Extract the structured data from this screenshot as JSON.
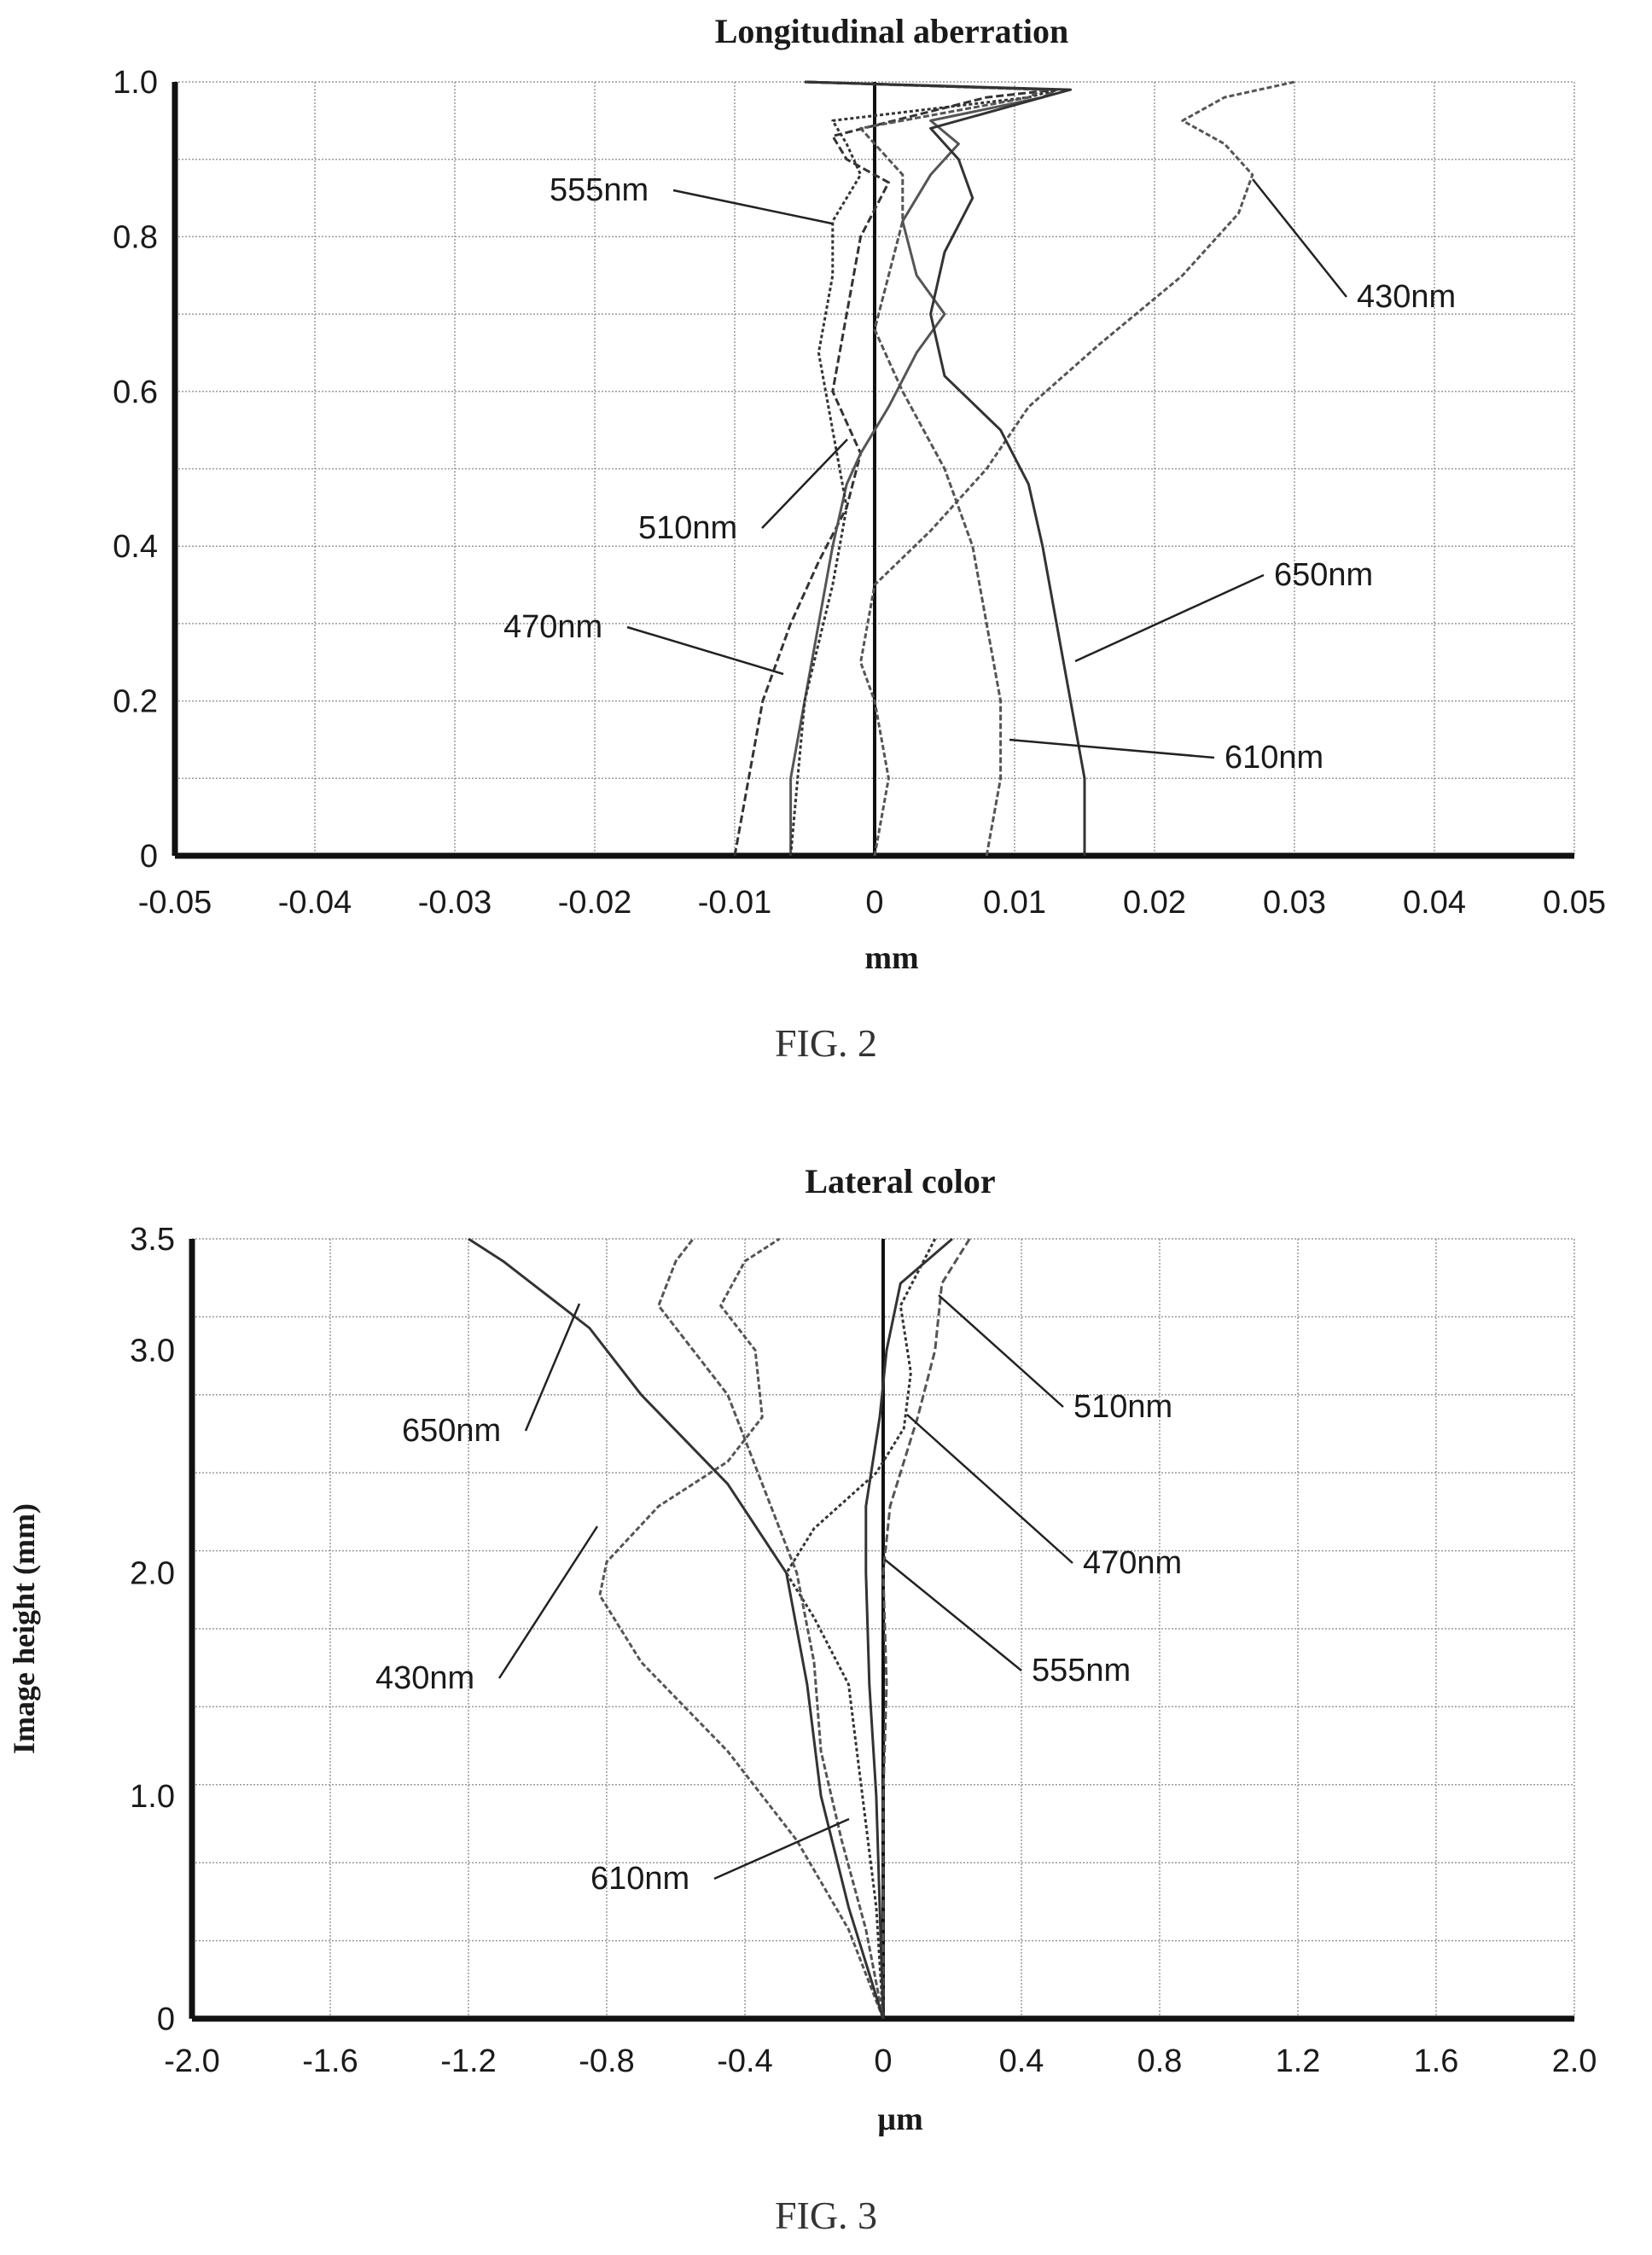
{
  "figures": [
    {
      "caption": "FIG. 2"
    },
    {
      "caption": "FIG. 3"
    }
  ],
  "chart_data": [
    {
      "type": "line",
      "title": "Longitudinal aberration",
      "xlabel": "mm",
      "ylabel": "",
      "xlim": [
        -0.05,
        0.05
      ],
      "ylim": [
        0,
        1.0
      ],
      "grid": true,
      "xticks": [
        "-0.05",
        "-0.04",
        "-0.03",
        "-0.02",
        "-0.01",
        "0",
        "0.01",
        "0.02",
        "0.03",
        "0.04",
        "0.05"
      ],
      "yticks": [
        "0",
        "0.2",
        "0.4",
        "0.6",
        "0.8",
        "1.0"
      ],
      "series": [
        {
          "name": "430nm",
          "points": [
            [
              0,
              0
            ],
            [
              0.001,
              0.1
            ],
            [
              0.0,
              0.2
            ],
            [
              -0.001,
              0.25
            ],
            [
              0.0,
              0.35
            ],
            [
              0.004,
              0.42
            ],
            [
              0.008,
              0.5
            ],
            [
              0.011,
              0.58
            ],
            [
              0.016,
              0.66
            ],
            [
              0.022,
              0.75
            ],
            [
              0.026,
              0.83
            ],
            [
              0.027,
              0.88
            ],
            [
              0.025,
              0.92
            ],
            [
              0.022,
              0.95
            ],
            [
              0.025,
              0.98
            ],
            [
              0.03,
              1.0
            ]
          ]
        },
        {
          "name": "470nm",
          "points": [
            [
              -0.01,
              0
            ],
            [
              -0.009,
              0.1
            ],
            [
              -0.008,
              0.2
            ],
            [
              -0.006,
              0.3
            ],
            [
              -0.004,
              0.38
            ],
            [
              -0.002,
              0.45
            ],
            [
              -0.001,
              0.52
            ],
            [
              -0.003,
              0.6
            ],
            [
              -0.002,
              0.7
            ],
            [
              -0.001,
              0.8
            ],
            [
              0.001,
              0.87
            ],
            [
              -0.002,
              0.9
            ],
            [
              -0.003,
              0.93
            ],
            [
              0.008,
              0.98
            ],
            [
              0.013,
              0.99
            ],
            [
              -0.005,
              1.0
            ]
          ]
        },
        {
          "name": "510nm",
          "points": [
            [
              -0.006,
              0
            ],
            [
              -0.006,
              0.1
            ],
            [
              -0.005,
              0.2
            ],
            [
              -0.004,
              0.3
            ],
            [
              -0.003,
              0.4
            ],
            [
              -0.002,
              0.48
            ],
            [
              -0.001,
              0.52
            ],
            [
              0.001,
              0.58
            ],
            [
              0.003,
              0.65
            ],
            [
              0.005,
              0.7
            ],
            [
              0.003,
              0.75
            ],
            [
              0.002,
              0.82
            ],
            [
              0.004,
              0.88
            ],
            [
              0.006,
              0.92
            ],
            [
              0.004,
              0.95
            ],
            [
              0.012,
              0.98
            ],
            [
              0.013,
              0.99
            ],
            [
              -0.005,
              1.0
            ]
          ]
        },
        {
          "name": "555nm",
          "points": [
            [
              -0.006,
              0
            ],
            [
              -0.005,
              0.2
            ],
            [
              -0.003,
              0.35
            ],
            [
              -0.002,
              0.45
            ],
            [
              -0.003,
              0.55
            ],
            [
              -0.004,
              0.65
            ],
            [
              -0.003,
              0.75
            ],
            [
              -0.003,
              0.82
            ],
            [
              -0.001,
              0.88
            ],
            [
              -0.002,
              0.92
            ],
            [
              -0.003,
              0.95
            ],
            [
              0.011,
              0.98
            ],
            [
              0.013,
              0.99
            ],
            [
              -0.005,
              1.0
            ]
          ]
        },
        {
          "name": "610nm",
          "points": [
            [
              0.008,
              0
            ],
            [
              0.009,
              0.1
            ],
            [
              0.009,
              0.2
            ],
            [
              0.008,
              0.3
            ],
            [
              0.007,
              0.4
            ],
            [
              0.005,
              0.5
            ],
            [
              0.002,
              0.6
            ],
            [
              0.0,
              0.68
            ],
            [
              0.001,
              0.75
            ],
            [
              0.002,
              0.82
            ],
            [
              0.002,
              0.88
            ],
            [
              0.0,
              0.92
            ],
            [
              -0.001,
              0.94
            ],
            [
              0.011,
              0.98
            ],
            [
              0.012,
              0.99
            ],
            [
              -0.005,
              1.0
            ]
          ]
        },
        {
          "name": "650nm",
          "points": [
            [
              0.015,
              0
            ],
            [
              0.015,
              0.1
            ],
            [
              0.014,
              0.2
            ],
            [
              0.013,
              0.3
            ],
            [
              0.012,
              0.4
            ],
            [
              0.011,
              0.48
            ],
            [
              0.009,
              0.55
            ],
            [
              0.005,
              0.62
            ],
            [
              0.004,
              0.7
            ],
            [
              0.005,
              0.78
            ],
            [
              0.007,
              0.85
            ],
            [
              0.006,
              0.9
            ],
            [
              0.004,
              0.94
            ],
            [
              0.012,
              0.98
            ],
            [
              0.014,
              0.99
            ],
            [
              -0.005,
              1.0
            ]
          ]
        }
      ]
    },
    {
      "type": "line",
      "title": "Lateral color",
      "xlabel": "µm",
      "ylabel": "Image height (mm)",
      "xlim": [
        -2.0,
        2.0
      ],
      "ylim": [
        0,
        3.5
      ],
      "grid": true,
      "xticks": [
        "-2.0",
        "-1.6",
        "-1.2",
        "-0.8",
        "-0.4",
        "0",
        "0.4",
        "0.8",
        "1.2",
        "1.6",
        "2.0"
      ],
      "yticks": [
        "0",
        "1.0",
        "2.0",
        "3.0",
        "3.5"
      ],
      "series": [
        {
          "name": "430nm",
          "points": [
            [
              0,
              0
            ],
            [
              -0.1,
              0.4
            ],
            [
              -0.25,
              0.8
            ],
            [
              -0.45,
              1.2
            ],
            [
              -0.7,
              1.6
            ],
            [
              -0.82,
              1.9
            ],
            [
              -0.8,
              2.05
            ],
            [
              -0.65,
              2.3
            ],
            [
              -0.45,
              2.5
            ],
            [
              -0.35,
              2.7
            ],
            [
              -0.37,
              3.0
            ],
            [
              -0.47,
              3.2
            ],
            [
              -0.4,
              3.4
            ],
            [
              -0.3,
              3.5
            ]
          ]
        },
        {
          "name": "470nm",
          "points": [
            [
              0,
              0
            ],
            [
              -0.02,
              0.5
            ],
            [
              -0.06,
              1.0
            ],
            [
              -0.1,
              1.5
            ],
            [
              -0.2,
              1.8
            ],
            [
              -0.28,
              2.0
            ],
            [
              -0.2,
              2.2
            ],
            [
              -0.02,
              2.45
            ],
            [
              0.06,
              2.65
            ],
            [
              0.08,
              2.9
            ],
            [
              0.05,
              3.2
            ],
            [
              0.15,
              3.5
            ]
          ]
        },
        {
          "name": "510nm",
          "points": [
            [
              0,
              0
            ],
            [
              0.0,
              0.5
            ],
            [
              0.0,
              1.0
            ],
            [
              0.01,
              1.5
            ],
            [
              0.0,
              2.0
            ],
            [
              0.02,
              2.3
            ],
            [
              0.1,
              2.7
            ],
            [
              0.15,
              3.0
            ],
            [
              0.17,
              3.3
            ],
            [
              0.25,
              3.5
            ]
          ]
        },
        {
          "name": "555nm",
          "points": [
            [
              0,
              0
            ],
            [
              -0.01,
              0.5
            ],
            [
              -0.02,
              1.0
            ],
            [
              -0.04,
              1.5
            ],
            [
              -0.05,
              2.0
            ],
            [
              -0.05,
              2.3
            ],
            [
              -0.01,
              2.7
            ],
            [
              0.01,
              3.0
            ],
            [
              0.05,
              3.3
            ],
            [
              0.2,
              3.5
            ]
          ]
        },
        {
          "name": "610nm",
          "points": [
            [
              0,
              0
            ],
            [
              -0.05,
              0.4
            ],
            [
              -0.12,
              0.8
            ],
            [
              -0.18,
              1.2
            ],
            [
              -0.2,
              1.6
            ],
            [
              -0.25,
              2.0
            ],
            [
              -0.35,
              2.4
            ],
            [
              -0.45,
              2.8
            ],
            [
              -0.65,
              3.2
            ],
            [
              -0.6,
              3.4
            ],
            [
              -0.55,
              3.5
            ]
          ]
        },
        {
          "name": "650nm",
          "points": [
            [
              0,
              0
            ],
            [
              -0.1,
              0.5
            ],
            [
              -0.18,
              1.0
            ],
            [
              -0.22,
              1.5
            ],
            [
              -0.28,
              2.0
            ],
            [
              -0.45,
              2.4
            ],
            [
              -0.7,
              2.8
            ],
            [
              -0.85,
              3.1
            ],
            [
              -1.1,
              3.4
            ],
            [
              -1.2,
              3.5
            ]
          ]
        }
      ]
    }
  ],
  "annotations": [
    [
      {
        "series": "555nm",
        "text": "555nm"
      },
      {
        "series": "430nm",
        "text": "430nm"
      },
      {
        "series": "510nm",
        "text": "510nm"
      },
      {
        "series": "650nm",
        "text": "650nm"
      },
      {
        "series": "470nm",
        "text": "470nm"
      },
      {
        "series": "610nm",
        "text": "610nm"
      }
    ],
    [
      {
        "series": "510nm",
        "text": "510nm"
      },
      {
        "series": "650nm",
        "text": "650nm"
      },
      {
        "series": "470nm",
        "text": "470nm"
      },
      {
        "series": "430nm",
        "text": "430nm"
      },
      {
        "series": "555nm",
        "text": "555nm"
      },
      {
        "series": "610nm",
        "text": "610nm"
      }
    ]
  ]
}
